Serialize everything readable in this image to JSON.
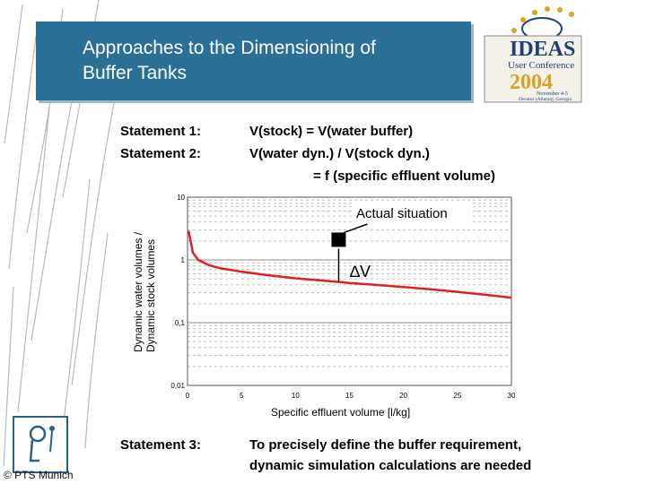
{
  "slide": {
    "title_line1": "Approaches to the Dimensioning of",
    "title_line2": "Buffer Tanks",
    "statement1_label": "Statement 1:",
    "statement1_text": "V(stock) = V(water buffer)",
    "statement2_label": "Statement 2:",
    "statement2_text_line1": "V(water dyn.) / V(stock dyn.)",
    "statement2_text_line2": "= f (specific effluent volume)",
    "statement3_label": "Statement 3:",
    "statement3_text_line1": "To precisely define the buffer requirement,",
    "statement3_text_line2": "dynamic simulation calculations are needed",
    "copyright": "© PTS Munich"
  },
  "logo": {
    "name": "IDEAS",
    "subtitle": "User Conference",
    "year": "2004",
    "date": "November 4-5",
    "place": "Decatur (Atlanta), Georgia"
  },
  "colors": {
    "title_bg": "#2b6f96",
    "curve": "#e02020",
    "grid": "#999999",
    "logo_gold": "#d9a320",
    "logo_navy": "#1f3f78"
  },
  "icons": [
    "ideas-logo-icon",
    "pts-logo-icon"
  ],
  "chart_data": {
    "type": "line",
    "xlabel": "Specific effluent volume [l/kg]",
    "ylabel_line1": "Dynamic water volumes /",
    "ylabel_line2": "Dynamic stock volumes",
    "x_ticks": [
      "0",
      "5",
      "10",
      "15",
      "20",
      "25",
      "30"
    ],
    "y_ticks": [
      "10",
      "1",
      "0,1",
      "0,01"
    ],
    "xlim": [
      0,
      30
    ],
    "ylim": [
      0.01,
      10
    ],
    "y_scale": "log",
    "grid": true,
    "series": [
      {
        "x": [
          0.1,
          0.5,
          1,
          2,
          3,
          5,
          7.5,
          10,
          12.5,
          15,
          17.5,
          20,
          22.5,
          25,
          27.5,
          30
        ],
        "y": [
          2.9,
          1.3,
          1.0,
          0.82,
          0.74,
          0.65,
          0.57,
          0.51,
          0.47,
          0.43,
          0.4,
          0.37,
          0.34,
          0.31,
          0.28,
          0.25
        ]
      }
    ],
    "annotations": {
      "actual_situation_label": "Actual situation",
      "actual_point": {
        "x": 14,
        "y": 2.1
      },
      "delta_label": "∆V",
      "delta_x": 14
    }
  }
}
